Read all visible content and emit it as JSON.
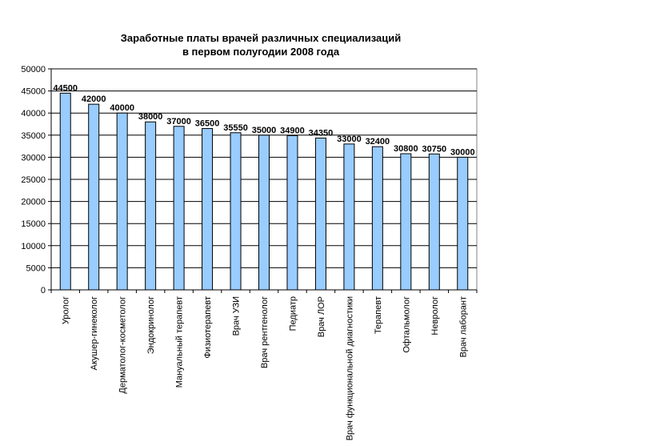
{
  "chart_data": {
    "type": "bar",
    "title_lines": [
      "Заработные платы врачей различных специализаций",
      "в первом полугодии 2008 года"
    ],
    "categories": [
      "Уролог",
      "Акушер-гинеколог",
      "Дерматолог-косметолог",
      "Эндокринолог",
      "Мануальный терапевт",
      "Физиотерапевт",
      "Врач УЗИ",
      "Врач рентгенолог",
      "Педиатр",
      "Врач ЛОР",
      "Врач функциональной диагностики",
      "Терапевт",
      "Офтальмолог",
      "Невролог",
      "Врач лаборант"
    ],
    "values": [
      44500,
      42000,
      40000,
      38000,
      37000,
      36500,
      35550,
      35000,
      34900,
      34350,
      33000,
      32400,
      30800,
      30750,
      30000
    ],
    "value_labels": [
      "44500",
      "42000",
      "40000",
      "38000",
      "37000",
      "36500",
      "35550",
      "35000",
      "34900",
      "34350",
      "33000",
      "32400",
      "30800",
      "30750",
      "30000"
    ],
    "ylim": [
      0,
      50000
    ],
    "yticks": [
      0,
      5000,
      10000,
      15000,
      20000,
      25000,
      30000,
      35000,
      40000,
      45000,
      50000
    ],
    "ytick_labels": [
      "0",
      "5000",
      "10000",
      "15000",
      "20000",
      "25000",
      "30000",
      "35000",
      "40000",
      "45000",
      "50000"
    ],
    "grid": true,
    "legend": "none",
    "bar_color": "#99ccff",
    "bar_edge_color": "#000000",
    "plot_border_color": "#808080",
    "grid_color": "#000000"
  }
}
